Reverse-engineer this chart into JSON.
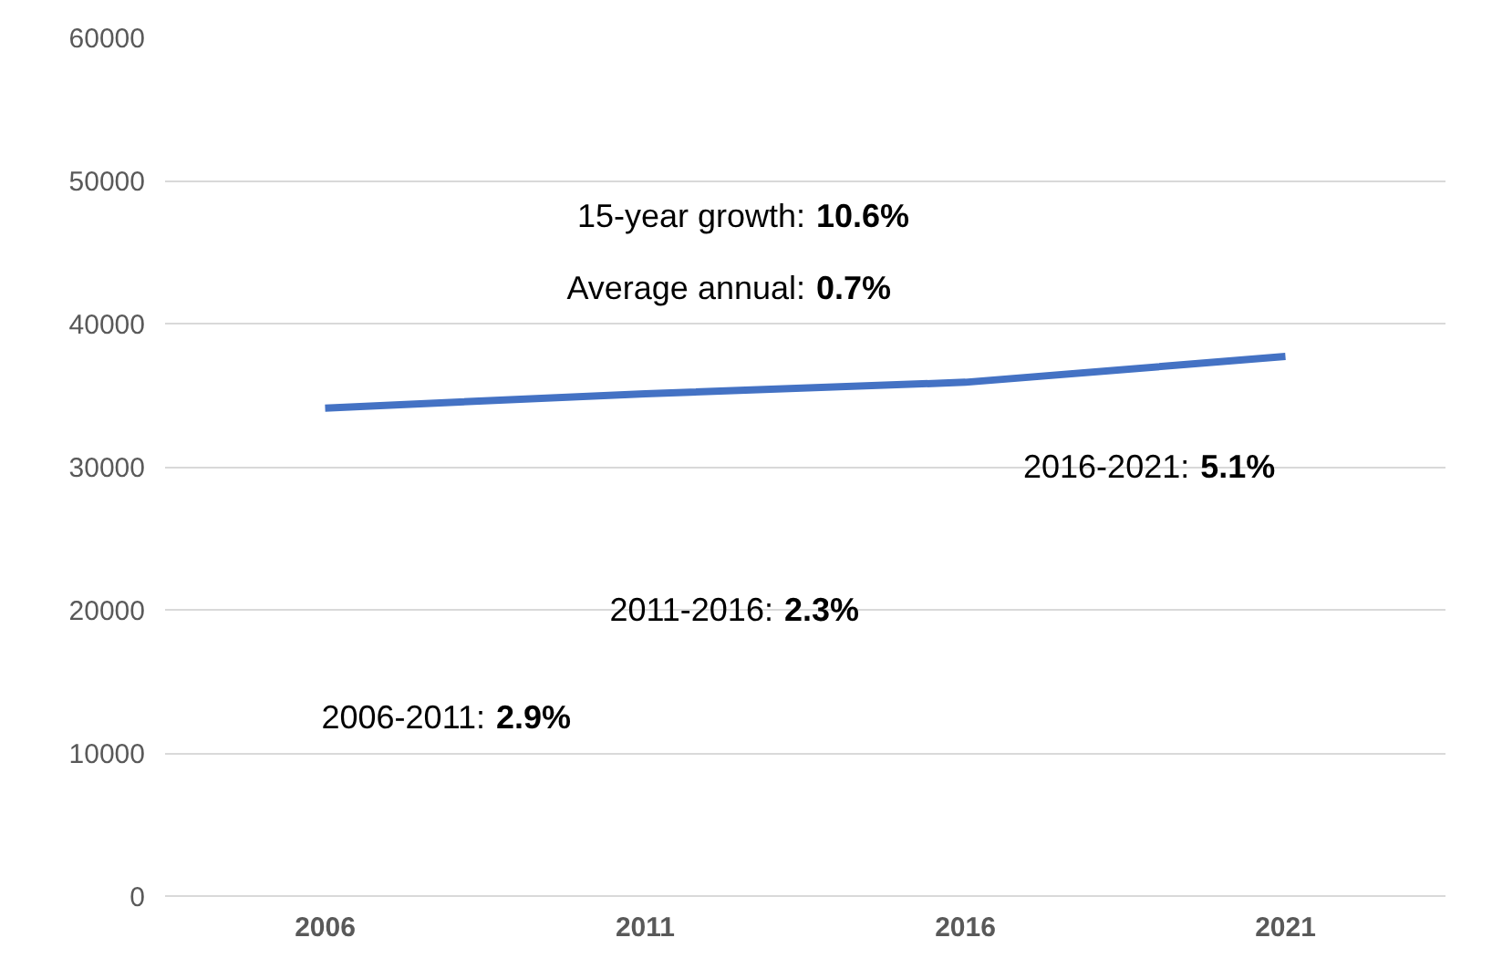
{
  "chart_data": {
    "type": "line",
    "categories": [
      "2006",
      "2011",
      "2016",
      "2021"
    ],
    "series": [
      {
        "color": "#4472c4",
        "values": [
          34100,
          35100,
          35900,
          37700
        ]
      }
    ],
    "ylim": [
      0,
      60000
    ],
    "yticks": [
      0,
      10000,
      20000,
      30000,
      40000,
      50000,
      60000
    ],
    "grid": "y",
    "marker": "none",
    "line_style": "solid",
    "annotations": [
      "15-year growth: 10.6%",
      "Average annual: 0.7%",
      "2016-2021: 5.1%",
      "2011-2016: 2.3%",
      "2006-2011: 2.9%"
    ]
  }
}
